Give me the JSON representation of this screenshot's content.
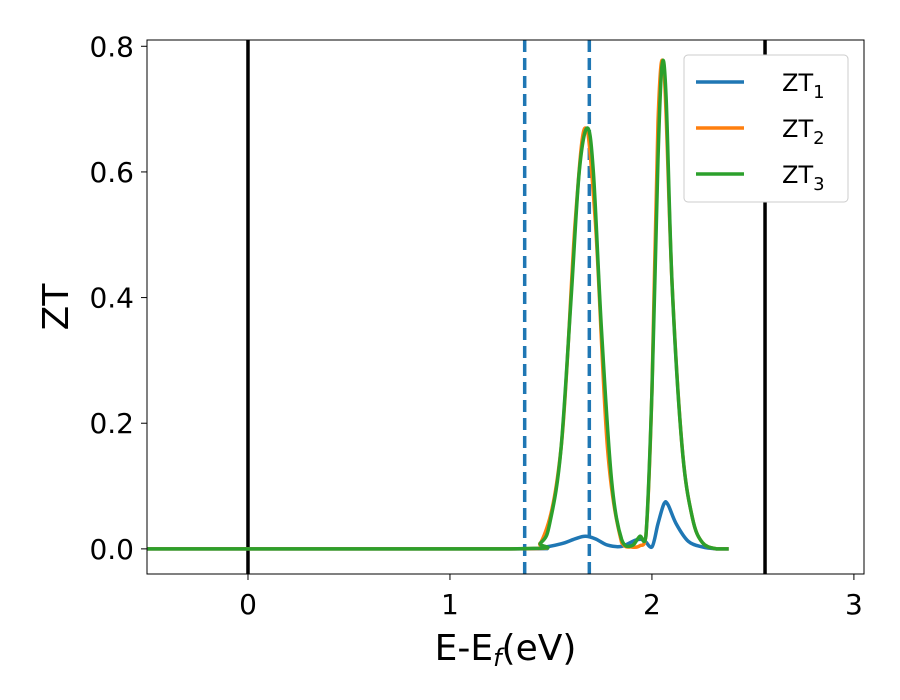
{
  "chart_data": {
    "type": "line",
    "xlabel": "E-E",
    "xlabel_sub": "f",
    "xlabel_unit": "(eV)",
    "ylabel": "ZT",
    "xlim": [
      -0.5,
      3.05
    ],
    "ylim": [
      -0.04,
      0.81
    ],
    "x_ticks": [
      0,
      1,
      2,
      3
    ],
    "x_tick_labels": [
      "0",
      "1",
      "2",
      "3"
    ],
    "y_ticks": [
      0.0,
      0.2,
      0.4,
      0.6,
      0.8
    ],
    "y_tick_labels": [
      "0.0",
      "0.2",
      "0.4",
      "0.6",
      "0.8"
    ],
    "grid": false,
    "legend_position": "top-right",
    "vertical_lines": [
      {
        "x": 0.0,
        "style": "solid",
        "color": "#000000"
      },
      {
        "x": 2.56,
        "style": "solid",
        "color": "#000000"
      },
      {
        "x": 1.37,
        "style": "dashed",
        "color": "#1f77b4"
      },
      {
        "x": 1.69,
        "style": "dashed",
        "color": "#1f77b4"
      }
    ],
    "series": [
      {
        "name": "ZT",
        "name_sub": "1",
        "color": "#1f77b4",
        "x": [
          -0.5,
          1.3,
          1.45,
          1.55,
          1.62,
          1.67,
          1.72,
          1.78,
          1.85,
          1.92,
          1.96,
          2.0,
          2.03,
          2.06,
          2.08,
          2.12,
          2.18,
          2.25,
          2.32,
          2.38
        ],
        "y": [
          0.0,
          0.0,
          0.002,
          0.008,
          0.016,
          0.02,
          0.016,
          0.006,
          0.004,
          0.014,
          0.014,
          0.003,
          0.04,
          0.072,
          0.07,
          0.04,
          0.012,
          0.003,
          0.0,
          0.0
        ]
      },
      {
        "name": "ZT",
        "name_sub": "2",
        "color": "#ff7f0e",
        "x": [
          -0.5,
          1.3,
          1.45,
          1.55,
          1.62,
          1.67,
          1.72,
          1.78,
          1.85,
          1.9,
          1.94,
          1.97,
          2.0,
          2.03,
          2.06,
          2.1,
          2.15,
          2.2,
          2.25,
          2.32,
          2.38
        ],
        "y": [
          0.0,
          0.0,
          0.01,
          0.16,
          0.52,
          0.67,
          0.52,
          0.16,
          0.01,
          0.003,
          0.005,
          0.02,
          0.25,
          0.68,
          0.76,
          0.42,
          0.16,
          0.05,
          0.01,
          0.0,
          0.0
        ]
      },
      {
        "name": "ZT",
        "name_sub": "3",
        "color": "#2ca02c",
        "x": [
          -0.5,
          1.3,
          1.45,
          1.5,
          1.55,
          1.6,
          1.64,
          1.68,
          1.71,
          1.75,
          1.8,
          1.85,
          1.9,
          1.94,
          1.97,
          2.0,
          2.03,
          2.05,
          2.07,
          2.1,
          2.15,
          2.2,
          2.25,
          2.32,
          2.38
        ],
        "y": [
          0.0,
          0.0,
          0.01,
          0.05,
          0.16,
          0.4,
          0.6,
          0.67,
          0.6,
          0.35,
          0.11,
          0.015,
          0.005,
          0.02,
          0.02,
          0.25,
          0.62,
          0.77,
          0.72,
          0.42,
          0.16,
          0.05,
          0.01,
          0.0,
          0.0
        ]
      }
    ]
  }
}
